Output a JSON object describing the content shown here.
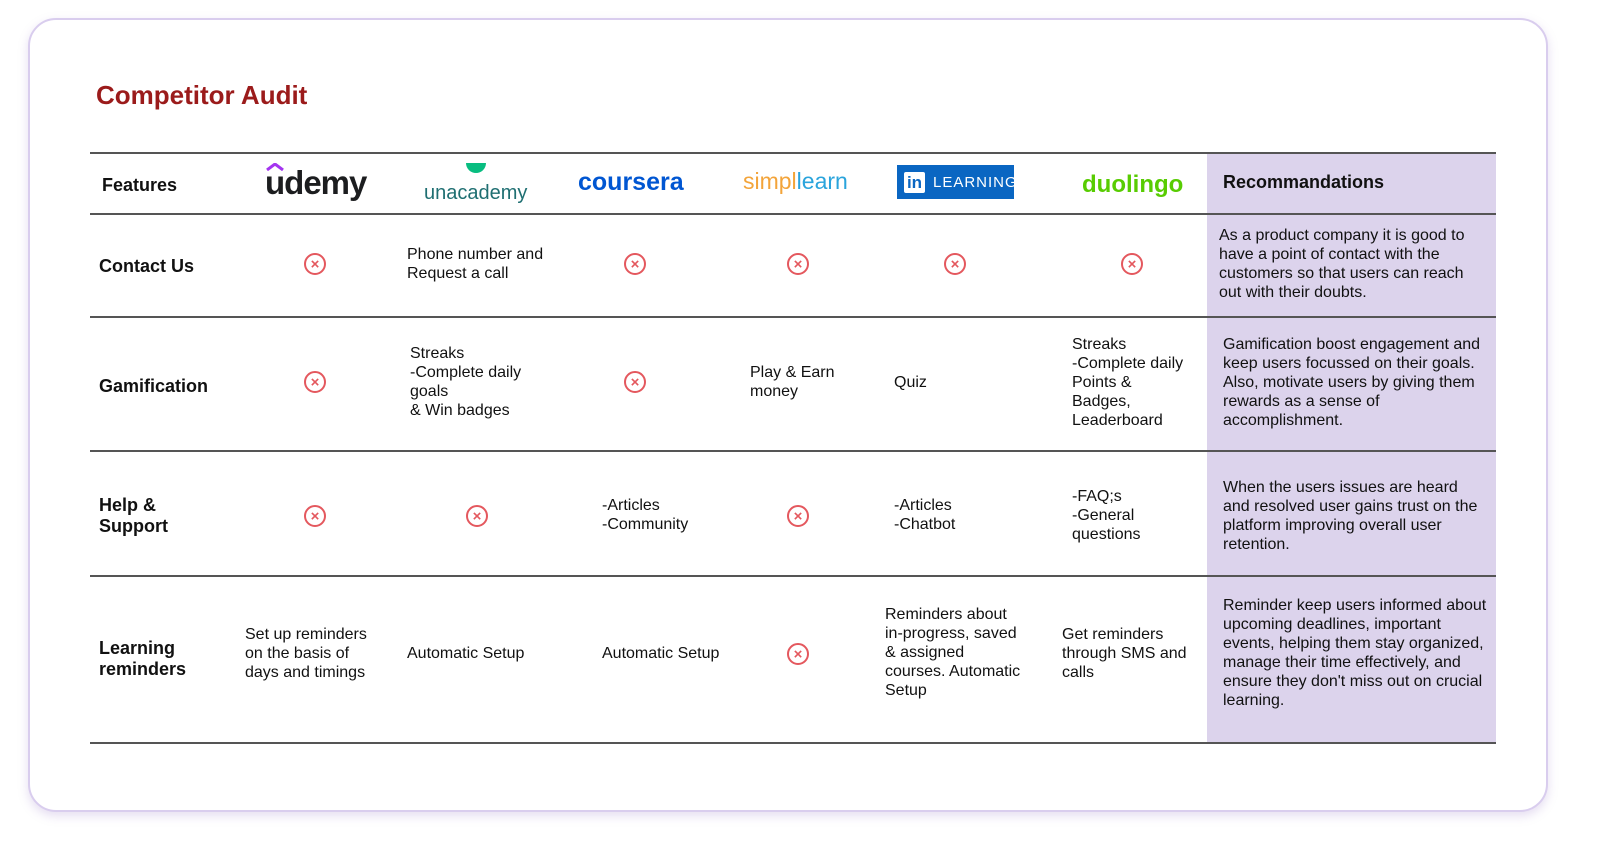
{
  "title": "Competitor Audit",
  "header": {
    "features": "Features",
    "recommendations": "Recommandations",
    "logos": {
      "udemy": "udemy",
      "unacademy": "unacademy",
      "coursera": "coursera",
      "simplilearn_a": "simpl",
      "simplilearn_b": "learn",
      "linkedin_in": "in",
      "linkedin_learning": "LEARNING",
      "duolingo": "duolingo"
    }
  },
  "rows": [
    {
      "feature": "Contact Us",
      "unacademy": "Phone number and\nRequest a call",
      "recommendation": "As a product company it is good to have a point of contact with the customers so that users can reach out with their doubts."
    },
    {
      "feature": "Gamification",
      "unacademy": "Streaks\n-Complete daily\ngoals\n& Win badges",
      "simplilearn": "Play & Earn\nmoney",
      "linkedin": "Quiz",
      "duolingo": "Streaks\n-Complete daily\nPoints &\nBadges,\nLeaderboard",
      "recommendation": "Gamification boost engagement and keep users focussed on their goals. Also, motivate users by giving them rewards as a sense of accomplishment."
    },
    {
      "feature": "Help &\nSupport",
      "coursera": "-Articles\n-Community",
      "linkedin": "-Articles\n-Chatbot",
      "duolingo": "-FAQ;s\n-General\nquestions",
      "recommendation": "When the users issues are heard and resolved user gains trust on the platform improving overall user retention."
    },
    {
      "feature": "Learning\nreminders",
      "udemy": "Set up reminders\non the basis of\ndays and timings",
      "unacademy": "Automatic Setup",
      "coursera": "Automatic Setup",
      "linkedin": "Reminders about\nin-progress, saved\n& assigned\ncourses. Automatic\nSetup",
      "duolingo": "Get reminders\nthrough SMS and\ncalls",
      "recommendation": "Reminder keep users informed about upcoming deadlines, important events, helping them stay organized, manage their time effectively, and ensure they don't miss out on crucial learning."
    }
  ],
  "no_feature_symbol": "×",
  "colors": {
    "title": "#9b1b1b",
    "recommendation_bg": "#dcd3ec",
    "cross": "#e4585e"
  }
}
